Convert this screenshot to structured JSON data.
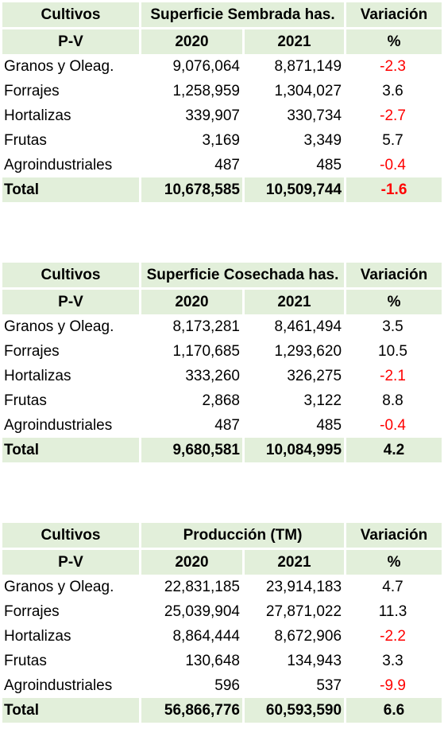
{
  "tables": [
    {
      "header": {
        "col1": "Cultivos",
        "metric": "Superficie Sembrada has.",
        "variation": "Variación"
      },
      "subheader": {
        "col1": "P-V",
        "year1": "2020",
        "year2": "2021",
        "unit": "%"
      },
      "rows": [
        {
          "name": "Granos y Oleag.",
          "y2020": "9,076,064",
          "y2021": "8,871,149",
          "var": "-2.3"
        },
        {
          "name": "Forrajes",
          "y2020": "1,258,959",
          "y2021": "1,304,027",
          "var": "3.6"
        },
        {
          "name": "Hortalizas",
          "y2020": "339,907",
          "y2021": "330,734",
          "var": "-2.7"
        },
        {
          "name": "Frutas",
          "y2020": "3,169",
          "y2021": "3,349",
          "var": "5.7"
        },
        {
          "name": "Agroindustriales",
          "y2020": "487",
          "y2021": "485",
          "var": "-0.4"
        }
      ],
      "total": {
        "name": "Total",
        "y2020": "10,678,585",
        "y2021": "10,509,744",
        "var": "-1.6"
      }
    },
    {
      "header": {
        "col1": "Cultivos",
        "metric": "Superficie Cosechada has.",
        "variation": "Variación"
      },
      "subheader": {
        "col1": "P-V",
        "year1": "2020",
        "year2": "2021",
        "unit": "%"
      },
      "rows": [
        {
          "name": "Granos y Oleag.",
          "y2020": "8,173,281",
          "y2021": "8,461,494",
          "var": "3.5"
        },
        {
          "name": "Forrajes",
          "y2020": "1,170,685",
          "y2021": "1,293,620",
          "var": "10.5"
        },
        {
          "name": "Hortalizas",
          "y2020": "333,260",
          "y2021": "326,275",
          "var": "-2.1"
        },
        {
          "name": "Frutas",
          "y2020": "2,868",
          "y2021": "3,122",
          "var": "8.8"
        },
        {
          "name": "Agroindustriales",
          "y2020": "487",
          "y2021": "485",
          "var": "-0.4"
        }
      ],
      "total": {
        "name": "Total",
        "y2020": "9,680,581",
        "y2021": "10,084,995",
        "var": "4.2"
      }
    },
    {
      "header": {
        "col1": "Cultivos",
        "metric": "Producción (TM)",
        "variation": "Variación"
      },
      "subheader": {
        "col1": "P-V",
        "year1": "2020",
        "year2": "2021",
        "unit": "%"
      },
      "rows": [
        {
          "name": "Granos y Oleag.",
          "y2020": "22,831,185",
          "y2021": "23,914,183",
          "var": "4.7"
        },
        {
          "name": "Forrajes",
          "y2020": "25,039,904",
          "y2021": "27,871,022",
          "var": "11.3"
        },
        {
          "name": "Hortalizas",
          "y2020": "8,864,444",
          "y2021": "8,672,906",
          "var": "-2.2"
        },
        {
          "name": "Frutas",
          "y2020": "130,648",
          "y2021": "134,943",
          "var": "3.3"
        },
        {
          "name": "Agroindustriales",
          "y2020": "596",
          "y2021": "537",
          "var": "-9.9"
        }
      ],
      "total": {
        "name": "Total",
        "y2020": "56,866,776",
        "y2021": "60,593,590",
        "var": "6.6"
      }
    }
  ],
  "colors": {
    "header_bg": "#e2efda",
    "negative": "#ff0000",
    "text": "#000000"
  }
}
